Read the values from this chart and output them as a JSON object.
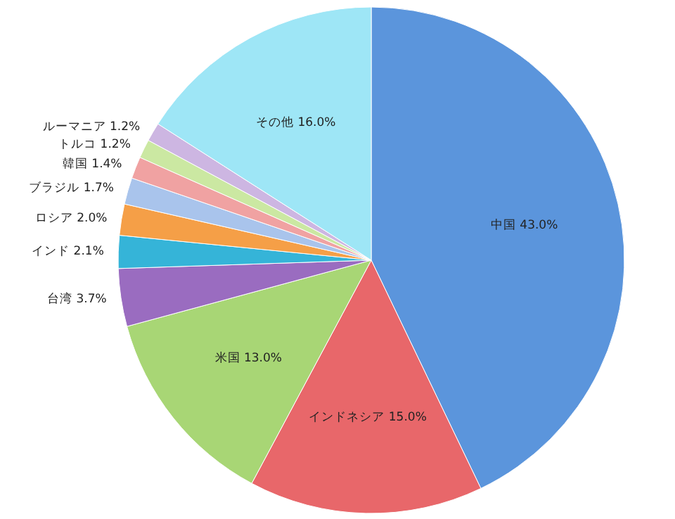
{
  "chart_data": {
    "type": "pie",
    "categories": [
      "中国",
      "インドネシア",
      "米国",
      "台湾",
      "インド",
      "ロシア",
      "ブラジル",
      "韓国",
      "トルコ",
      "ルーマニア",
      "その他"
    ],
    "values": [
      43.0,
      15.0,
      13.0,
      3.7,
      2.1,
      2.0,
      1.7,
      1.4,
      1.2,
      1.2,
      16.0
    ],
    "value_labels": [
      "43.0%",
      "15.0%",
      "13.0%",
      "3.7%",
      "2.1%",
      "2.0%",
      "1.7%",
      "1.4%",
      "1.2%",
      "1.2%",
      "16.0%"
    ],
    "colors": [
      "#5b95dc",
      "#e8676a",
      "#a8d675",
      "#9a6cc0",
      "#35b4d8",
      "#f59f47",
      "#a9c4ec",
      "#f0a2a2",
      "#cbe8a2",
      "#cdb6e2",
      "#9ee6f6"
    ]
  }
}
